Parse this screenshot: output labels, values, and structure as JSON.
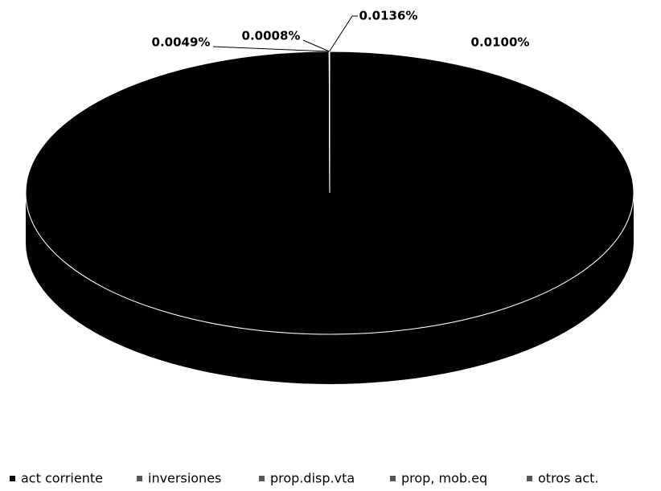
{
  "chart_data": {
    "type": "pie",
    "categories": [
      "act corriente",
      "inversiones",
      "prop.disp.vta",
      "prop, mob.eq",
      "otros act."
    ],
    "values": [
      99.9707,
      0.0049,
      0.0008,
      0.0136,
      0.01
    ],
    "value_labels": [
      null,
      "0.0049%",
      "0.0008%",
      "0.0136%",
      "0.0100%"
    ],
    "colors": [
      "#000000",
      "#111111",
      "#222222",
      "#8a8a8a",
      "#1a1a1a"
    ],
    "legend": "bottom"
  }
}
